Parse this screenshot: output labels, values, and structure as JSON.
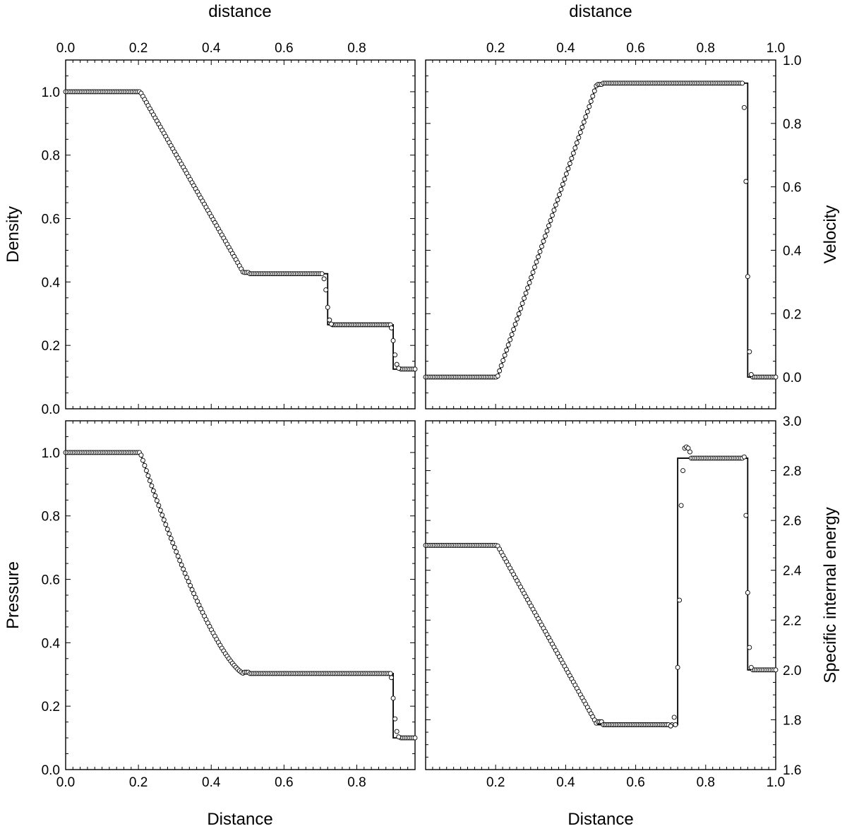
{
  "chart_data": [
    {
      "type": "line",
      "panel": "top-left",
      "xlabel_top": "distance",
      "ylabel_left": "Density",
      "xlim": [
        0.0,
        0.96
      ],
      "ylim": [
        0.0,
        1.1
      ],
      "x_ticks": [
        "0.0",
        "0.2",
        "0.4",
        "0.6",
        "0.8"
      ],
      "x_tick_values": [
        0.0,
        0.2,
        0.4,
        0.6,
        0.8
      ],
      "y_ticks": [
        "0.0",
        "0.2",
        "0.4",
        "0.6",
        "0.8",
        "1.0"
      ],
      "y_tick_values": [
        0.0,
        0.2,
        0.4,
        0.6,
        0.8,
        1.0
      ],
      "exact_solution": {
        "rarefaction": {
          "x_head": 0.205,
          "x_tail": 0.49,
          "left": 1.0,
          "right": 0.426,
          "power": 1.0
        },
        "steps": [
          [
            0.0,
            1.0
          ],
          [
            0.49,
            0.426
          ],
          [
            0.72,
            0.426
          ],
          [
            0.72,
            0.265
          ],
          [
            0.9,
            0.265
          ],
          [
            0.9,
            0.125
          ],
          [
            0.96,
            0.125
          ]
        ]
      },
      "numerical_points": {
        "n": 200,
        "extra": [
          [
            0.71,
            0.41
          ],
          [
            0.715,
            0.375
          ],
          [
            0.72,
            0.32
          ],
          [
            0.725,
            0.28
          ],
          [
            0.73,
            0.267
          ],
          [
            0.895,
            0.255
          ],
          [
            0.9,
            0.215
          ],
          [
            0.905,
            0.17
          ],
          [
            0.91,
            0.14
          ],
          [
            0.915,
            0.128
          ]
        ]
      }
    },
    {
      "type": "line",
      "panel": "top-right",
      "xlabel_top": "distance",
      "ylabel_right": "Velocity",
      "xlim": [
        0.0,
        1.0
      ],
      "ylim": [
        -0.1,
        1.0
      ],
      "x_ticks": [
        "0.2",
        "0.4",
        "0.6",
        "0.8",
        "1.0"
      ],
      "x_tick_values": [
        0.2,
        0.4,
        0.6,
        0.8,
        1.0
      ],
      "y_ticks": [
        "0.0",
        "0.2",
        "0.4",
        "0.6",
        "0.8",
        "1.0"
      ],
      "y_tick_values": [
        0.0,
        0.2,
        0.4,
        0.6,
        0.8,
        1.0
      ],
      "exact_solution": {
        "rarefaction": {
          "x_head": 0.205,
          "x_tail": 0.49,
          "left": 0.0,
          "right": 0.927,
          "power": 1.0
        },
        "steps": [
          [
            0.0,
            0.0
          ],
          [
            0.49,
            0.927
          ],
          [
            0.92,
            0.927
          ],
          [
            0.92,
            0.0
          ],
          [
            1.0,
            0.0
          ]
        ]
      },
      "numerical_points": {
        "n": 200,
        "extra": [
          [
            0.91,
            0.85
          ],
          [
            0.915,
            0.617
          ],
          [
            0.92,
            0.317
          ],
          [
            0.925,
            0.08
          ],
          [
            0.93,
            0.008
          ]
        ]
      }
    },
    {
      "type": "line",
      "panel": "bottom-left",
      "xlabel_bottom": "Distance",
      "ylabel_left": "Pressure",
      "xlim": [
        0.0,
        0.96
      ],
      "ylim": [
        0.0,
        1.1
      ],
      "x_ticks": [
        "0.0",
        "0.2",
        "0.4",
        "0.6",
        "0.8"
      ],
      "x_tick_values": [
        0.0,
        0.2,
        0.4,
        0.6,
        0.8
      ],
      "y_ticks": [
        "0.0",
        "0.2",
        "0.4",
        "0.6",
        "0.8",
        "1.0"
      ],
      "y_tick_values": [
        0.0,
        0.2,
        0.4,
        0.6,
        0.8,
        1.0
      ],
      "exact_solution": {
        "rarefaction": {
          "x_head": 0.205,
          "x_tail": 0.49,
          "left": 1.0,
          "right": 0.303,
          "power": 1.4
        },
        "steps": [
          [
            0.0,
            1.0
          ],
          [
            0.49,
            0.303
          ],
          [
            0.9,
            0.303
          ],
          [
            0.9,
            0.1
          ],
          [
            0.96,
            0.1
          ]
        ]
      },
      "numerical_points": {
        "n": 200,
        "extra": [
          [
            0.895,
            0.29
          ],
          [
            0.9,
            0.225
          ],
          [
            0.905,
            0.16
          ],
          [
            0.91,
            0.12
          ],
          [
            0.915,
            0.103
          ]
        ]
      }
    },
    {
      "type": "line",
      "panel": "bottom-right",
      "xlabel_bottom": "Distance",
      "ylabel_right": "Specific internal energy",
      "xlim": [
        0.0,
        1.0
      ],
      "ylim": [
        1.6,
        3.0
      ],
      "x_ticks": [
        "0.2",
        "0.4",
        "0.6",
        "0.8",
        "1.0"
      ],
      "x_tick_values": [
        0.2,
        0.4,
        0.6,
        0.8,
        1.0
      ],
      "y_ticks": [
        "1.6",
        "1.8",
        "2.0",
        "2.2",
        "2.4",
        "2.6",
        "2.8",
        "3.0"
      ],
      "y_tick_values": [
        1.6,
        1.8,
        2.0,
        2.2,
        2.4,
        2.6,
        2.8,
        3.0
      ],
      "exact_solution": {
        "rarefaction": {
          "x_head": 0.205,
          "x_tail": 0.49,
          "left": 2.5,
          "right": 1.78,
          "power": 1.0
        },
        "steps": [
          [
            0.0,
            2.5
          ],
          [
            0.49,
            1.78
          ],
          [
            0.72,
            1.78
          ],
          [
            0.72,
            2.85
          ],
          [
            0.92,
            2.85
          ],
          [
            0.92,
            2.0
          ],
          [
            1.0,
            2.0
          ]
        ]
      },
      "numerical_points": {
        "n": 200,
        "extra": [
          [
            0.7,
            1.775
          ],
          [
            0.71,
            1.81
          ],
          [
            0.72,
            2.01
          ],
          [
            0.725,
            2.28
          ],
          [
            0.73,
            2.66
          ],
          [
            0.735,
            2.8
          ],
          [
            0.74,
            2.89
          ],
          [
            0.745,
            2.895
          ],
          [
            0.75,
            2.89
          ],
          [
            0.755,
            2.875
          ],
          [
            0.91,
            2.855
          ],
          [
            0.915,
            2.62
          ],
          [
            0.92,
            2.31
          ],
          [
            0.925,
            2.09
          ],
          [
            0.93,
            2.01
          ]
        ]
      }
    }
  ]
}
